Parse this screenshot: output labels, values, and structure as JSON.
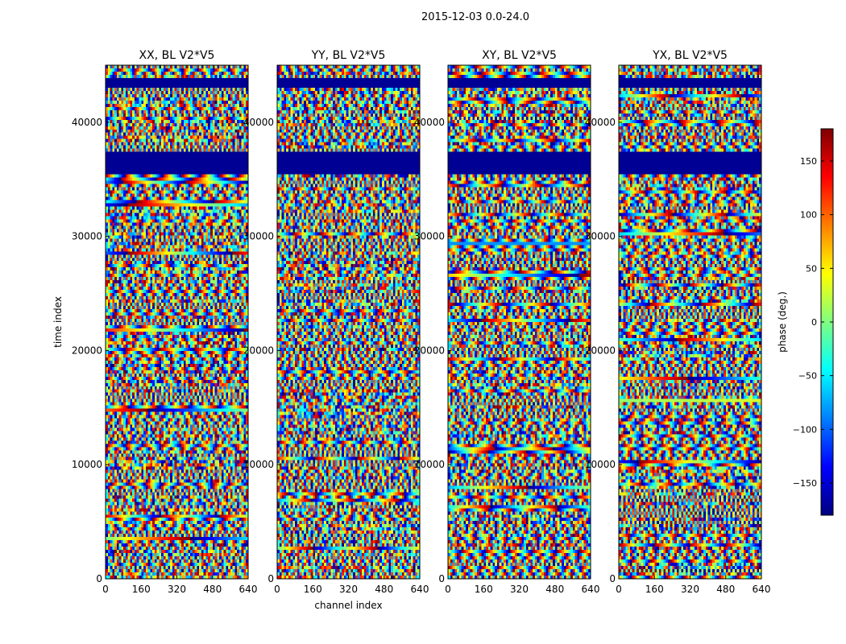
{
  "suptitle": "2015-12-03 0.0-24.0",
  "colorbar": {
    "label": "phase (deg.)",
    "ticks": [
      "150",
      "100",
      "50",
      "0",
      "−50",
      "−100",
      "−150"
    ],
    "tick_values": [
      150,
      100,
      50,
      0,
      -50,
      -100,
      -150
    ],
    "range": [
      -180,
      180
    ],
    "colormap": "jet",
    "colors": [
      "#00007f",
      "#0000ff",
      "#007fff",
      "#00ffff",
      "#7fff7f",
      "#ffff00",
      "#ff7f00",
      "#ff0000",
      "#7f0000"
    ]
  },
  "chart_data": [
    {
      "type": "heatmap",
      "title": "XX, BL V2*V5",
      "xlabel": "",
      "ylabel": "time index",
      "xticks": [
        "0",
        "160",
        "320",
        "480",
        "640"
      ],
      "xtick_values": [
        0,
        160,
        320,
        480,
        640
      ],
      "yticks": [
        "0",
        "10000",
        "20000",
        "30000",
        "40000"
      ],
      "ytick_values": [
        0,
        10000,
        20000,
        30000,
        40000
      ],
      "xlim": [
        0,
        640
      ],
      "ylim": [
        0,
        45000
      ],
      "value": "phase (deg.)",
      "value_range": [
        -180,
        180
      ],
      "flagged_time_ranges": [
        [
          35500,
          37500
        ],
        [
          43000,
          43900
        ]
      ]
    },
    {
      "type": "heatmap",
      "title": "YY, BL V2*V5",
      "xlabel": "channel index",
      "ylabel": "",
      "xticks": [
        "0",
        "160",
        "320",
        "480",
        "640"
      ],
      "xtick_values": [
        0,
        160,
        320,
        480,
        640
      ],
      "yticks": [
        "0",
        "10000",
        "20000",
        "30000",
        "40000"
      ],
      "ytick_values": [
        0,
        10000,
        20000,
        30000,
        40000
      ],
      "xlim": [
        0,
        640
      ],
      "ylim": [
        0,
        45000
      ],
      "value": "phase (deg.)",
      "value_range": [
        -180,
        180
      ],
      "flagged_time_ranges": [
        [
          35500,
          37500
        ],
        [
          43000,
          43900
        ]
      ]
    },
    {
      "type": "heatmap",
      "title": "XY, BL V2*V5",
      "xlabel": "",
      "ylabel": "",
      "xticks": [
        "0",
        "160",
        "320",
        "480",
        "640"
      ],
      "xtick_values": [
        0,
        160,
        320,
        480,
        640
      ],
      "yticks": [
        "0",
        "10000",
        "20000",
        "30000",
        "40000"
      ],
      "ytick_values": [
        0,
        10000,
        20000,
        30000,
        40000
      ],
      "xlim": [
        0,
        640
      ],
      "ylim": [
        0,
        45000
      ],
      "value": "phase (deg.)",
      "value_range": [
        -180,
        180
      ],
      "flagged_time_ranges": [
        [
          35500,
          37500
        ],
        [
          43000,
          43900
        ]
      ]
    },
    {
      "type": "heatmap",
      "title": "YX, BL V2*V5",
      "xlabel": "",
      "ylabel": "",
      "xticks": [
        "0",
        "160",
        "320",
        "480",
        "640"
      ],
      "xtick_values": [
        0,
        160,
        320,
        480,
        640
      ],
      "yticks": [
        "0",
        "10000",
        "20000",
        "30000",
        "40000"
      ],
      "ytick_values": [
        0,
        10000,
        20000,
        30000,
        40000
      ],
      "xlim": [
        0,
        640
      ],
      "ylim": [
        0,
        45000
      ],
      "value": "phase (deg.)",
      "value_range": [
        -180,
        180
      ],
      "flagged_time_ranges": [
        [
          35500,
          37500
        ],
        [
          43000,
          43900
        ]
      ]
    }
  ]
}
